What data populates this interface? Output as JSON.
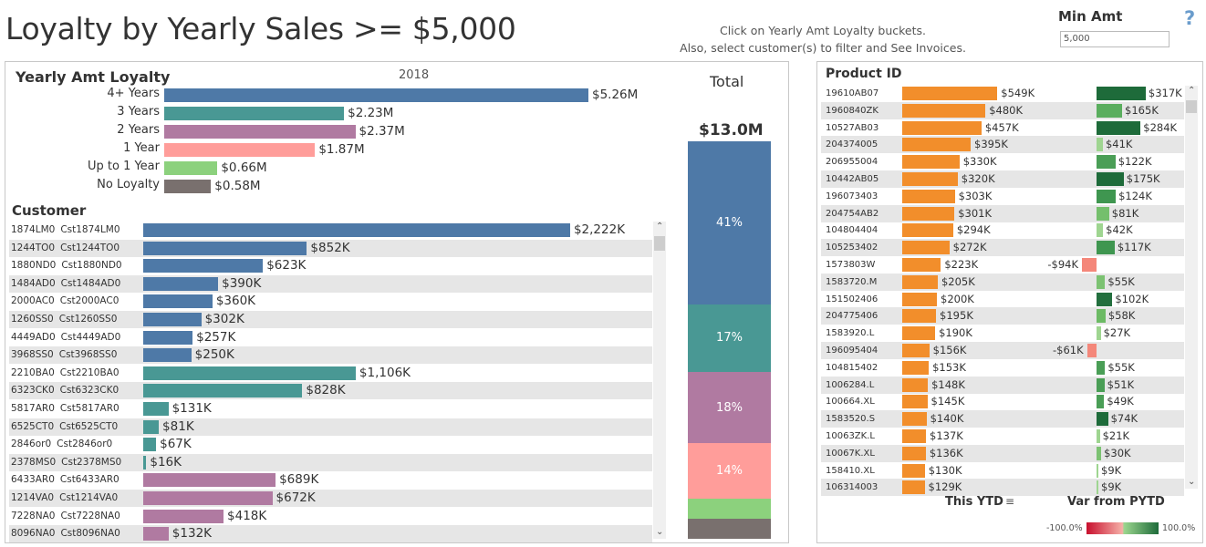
{
  "header": {
    "title": "Loyalty by Yearly Sales >=  $5,000",
    "instructions_1": "Click on Yearly Amt Loyalty buckets.",
    "instructions_2": "Also, select customer(s) to filter and See Invoices.",
    "min_amt_label": "Min Amt",
    "min_amt_value": "5,000",
    "help_icon": "?"
  },
  "loyalty": {
    "title": "Yearly Amt Loyalty",
    "year": "2018",
    "unit_max": 5.26,
    "items": [
      {
        "label": "4+ Years",
        "value": 5.26,
        "text": "$5.26M",
        "color": "#4e79a7"
      },
      {
        "label": "3 Years",
        "value": 2.23,
        "text": "$2.23M",
        "color": "#499894"
      },
      {
        "label": "2 Years",
        "value": 2.37,
        "text": "$2.37M",
        "color": "#b07aa1"
      },
      {
        "label": "1 Year",
        "value": 1.87,
        "text": "$1.87M",
        "color": "#ff9d9a"
      },
      {
        "label": "Up to 1 Year",
        "value": 0.66,
        "text": "$0.66M",
        "color": "#8cd17d"
      },
      {
        "label": "No Loyalty",
        "value": 0.58,
        "text": "$0.58M",
        "color": "#79706e"
      }
    ]
  },
  "total": {
    "title": "Total",
    "value": "$13.0M",
    "segments": [
      {
        "pct": 41,
        "label": "41%",
        "color": "#4e79a7"
      },
      {
        "pct": 17,
        "label": "17%",
        "color": "#499894"
      },
      {
        "pct": 18,
        "label": "18%",
        "color": "#b07aa1"
      },
      {
        "pct": 14,
        "label": "14%",
        "color": "#ff9d9a"
      },
      {
        "pct": 5,
        "label": "",
        "color": "#8cd17d"
      },
      {
        "pct": 5,
        "label": "",
        "color": "#79706e"
      }
    ]
  },
  "customers": {
    "title": "Customer",
    "rows": [
      {
        "id": "1874LM0",
        "name": "Cst1874LM0",
        "value": 2222,
        "text": "$2,222K",
        "color": "#4e79a7"
      },
      {
        "id": "1244TO0",
        "name": "Cst1244TO0",
        "value": 852,
        "text": "$852K",
        "color": "#4e79a7"
      },
      {
        "id": "1880ND0",
        "name": "Cst1880ND0",
        "value": 623,
        "text": "$623K",
        "color": "#4e79a7"
      },
      {
        "id": "1484AD0",
        "name": "Cst1484AD0",
        "value": 390,
        "text": "$390K",
        "color": "#4e79a7"
      },
      {
        "id": "2000AC0",
        "name": "Cst2000AC0",
        "value": 360,
        "text": "$360K",
        "color": "#4e79a7"
      },
      {
        "id": "1260SS0",
        "name": "Cst1260SS0",
        "value": 302,
        "text": "$302K",
        "color": "#4e79a7"
      },
      {
        "id": "4449AD0",
        "name": "Cst4449AD0",
        "value": 257,
        "text": "$257K",
        "color": "#4e79a7"
      },
      {
        "id": "3968SS0",
        "name": "Cst3968SS0",
        "value": 250,
        "text": "$250K",
        "color": "#4e79a7"
      },
      {
        "id": "2210BA0",
        "name": "Cst2210BA0",
        "value": 1106,
        "text": "$1,106K",
        "color": "#499894"
      },
      {
        "id": "6323CK0",
        "name": "Cst6323CK0",
        "value": 828,
        "text": "$828K",
        "color": "#499894"
      },
      {
        "id": "5817AR0",
        "name": "Cst5817AR0",
        "value": 131,
        "text": "$131K",
        "color": "#499894"
      },
      {
        "id": "6525CT0",
        "name": "Cst6525CT0",
        "value": 81,
        "text": "$81K",
        "color": "#499894"
      },
      {
        "id": "2846or0",
        "name": "Cst2846or0",
        "value": 67,
        "text": "$67K",
        "color": "#499894"
      },
      {
        "id": "2378MS0",
        "name": "Cst2378MS0",
        "value": 16,
        "text": "$16K",
        "color": "#499894"
      },
      {
        "id": "6433AR0",
        "name": "Cst6433AR0",
        "value": 689,
        "text": "$689K",
        "color": "#b07aa1"
      },
      {
        "id": "1214VA0",
        "name": "Cst1214VA0",
        "value": 672,
        "text": "$672K",
        "color": "#b07aa1"
      },
      {
        "id": "7228NA0",
        "name": "Cst7228NA0",
        "value": 418,
        "text": "$418K",
        "color": "#b07aa1"
      },
      {
        "id": "8096NA0",
        "name": "Cst8096NA0",
        "value": 132,
        "text": "$132K",
        "color": "#b07aa1"
      }
    ]
  },
  "products": {
    "title": "Product ID",
    "col_ytd": "This YTD",
    "col_var": "Var from PYTD",
    "legend_min": "-100.0%",
    "legend_max": "100.0%",
    "ytd_color": "#f28e2b",
    "rows": [
      {
        "id": "19610AB07",
        "ytd": 549,
        "ytd_text": "$549K",
        "var": 317,
        "var_text": "$317K",
        "var_color": "#1e6b3a"
      },
      {
        "id": "1960840ZK",
        "ytd": 480,
        "ytd_text": "$480K",
        "var": 165,
        "var_text": "$165K",
        "var_color": "#5aae5e"
      },
      {
        "id": "10527AB03",
        "ytd": 457,
        "ytd_text": "$457K",
        "var": 284,
        "var_text": "$284K",
        "var_color": "#1e6b3a"
      },
      {
        "id": "204374005",
        "ytd": 395,
        "ytd_text": "$395K",
        "var": 41,
        "var_text": "$41K",
        "var_color": "#9fd591"
      },
      {
        "id": "206955004",
        "ytd": 330,
        "ytd_text": "$330K",
        "var": 122,
        "var_text": "$122K",
        "var_color": "#4a9e56"
      },
      {
        "id": "10442AB05",
        "ytd": 320,
        "ytd_text": "$320K",
        "var": 175,
        "var_text": "$175K",
        "var_color": "#1e6b3a"
      },
      {
        "id": "196073403",
        "ytd": 303,
        "ytd_text": "$303K",
        "var": 124,
        "var_text": "$124K",
        "var_color": "#3f9650"
      },
      {
        "id": "204754AB2",
        "ytd": 301,
        "ytd_text": "$301K",
        "var": 81,
        "var_text": "$81K",
        "var_color": "#74bf6c"
      },
      {
        "id": "104804404",
        "ytd": 294,
        "ytd_text": "$294K",
        "var": 42,
        "var_text": "$42K",
        "var_color": "#9fd591"
      },
      {
        "id": "105253402",
        "ytd": 272,
        "ytd_text": "$272K",
        "var": 117,
        "var_text": "$117K",
        "var_color": "#3f9650"
      },
      {
        "id": "1573803W",
        "ytd": 223,
        "ytd_text": "$223K",
        "var": -94,
        "var_text": "-$94K",
        "var_color": "#f4877a"
      },
      {
        "id": "1583720.M",
        "ytd": 205,
        "ytd_text": "$205K",
        "var": 55,
        "var_text": "$55K",
        "var_color": "#7cc272"
      },
      {
        "id": "151502406",
        "ytd": 200,
        "ytd_text": "$200K",
        "var": 102,
        "var_text": "$102K",
        "var_color": "#236f3e"
      },
      {
        "id": "204775406",
        "ytd": 195,
        "ytd_text": "$195K",
        "var": 58,
        "var_text": "$58K",
        "var_color": "#6cba64"
      },
      {
        "id": "1583920.L",
        "ytd": 190,
        "ytd_text": "$190K",
        "var": 27,
        "var_text": "$27K",
        "var_color": "#9fd591"
      },
      {
        "id": "196095404",
        "ytd": 156,
        "ytd_text": "$156K",
        "var": -61,
        "var_text": "-$61K",
        "var_color": "#f4877a"
      },
      {
        "id": "104815402",
        "ytd": 153,
        "ytd_text": "$153K",
        "var": 55,
        "var_text": "$55K",
        "var_color": "#4a9e56"
      },
      {
        "id": "1006284.L",
        "ytd": 148,
        "ytd_text": "$148K",
        "var": 51,
        "var_text": "$51K",
        "var_color": "#4a9e56"
      },
      {
        "id": "100664.XL",
        "ytd": 145,
        "ytd_text": "$145K",
        "var": 49,
        "var_text": "$49K",
        "var_color": "#4a9e56"
      },
      {
        "id": "1583520.S",
        "ytd": 140,
        "ytd_text": "$140K",
        "var": 74,
        "var_text": "$74K",
        "var_color": "#1e6b3a"
      },
      {
        "id": "10063ZK.L",
        "ytd": 137,
        "ytd_text": "$137K",
        "var": 21,
        "var_text": "$21K",
        "var_color": "#9fd591"
      },
      {
        "id": "10067K.XL",
        "ytd": 136,
        "ytd_text": "$136K",
        "var": 30,
        "var_text": "$30K",
        "var_color": "#7cc272"
      },
      {
        "id": "158410.XL",
        "ytd": 130,
        "ytd_text": "$130K",
        "var": 9,
        "var_text": "$9K",
        "var_color": "#9fd591"
      },
      {
        "id": "106314003",
        "ytd": 129,
        "ytd_text": "$129K",
        "var": 9,
        "var_text": "$9K",
        "var_color": "#9fd591"
      }
    ]
  }
}
